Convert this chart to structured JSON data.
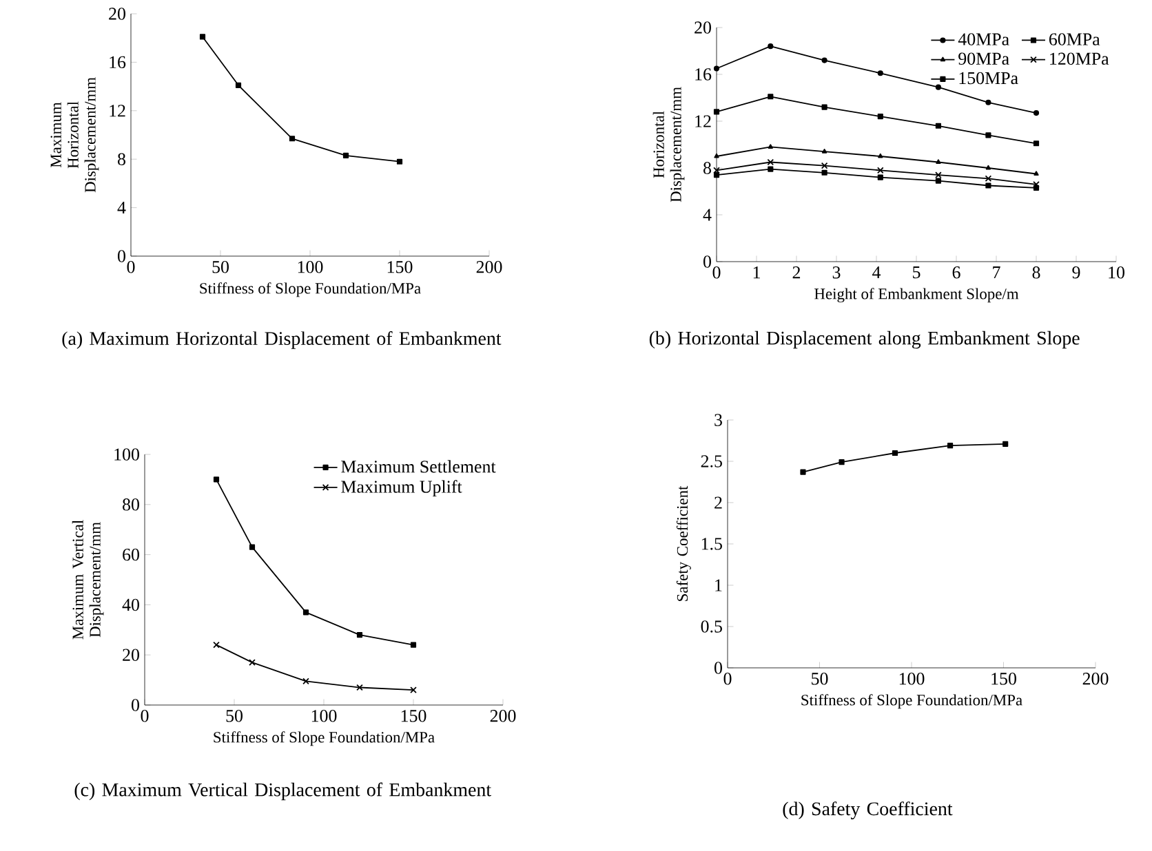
{
  "chart_data": [
    {
      "type": "line",
      "xlabel": "Stiffness of Slope Foundation/MPa",
      "ylabel": "Maximum Horizontal Displacement/mm",
      "annotations": [
        "(a) Maximum Horizontal Displacement of Embankment"
      ],
      "x": [
        40,
        60,
        90,
        120,
        150
      ],
      "marker": "square",
      "xlim": [
        0,
        200
      ],
      "ylim": [
        0,
        20
      ],
      "xticks": [
        0,
        50,
        100,
        150,
        200
      ],
      "yticks": [
        0,
        4,
        8,
        12,
        16,
        20
      ],
      "series": [
        {
          "color": "#000000",
          "values": [
            18.1,
            14.1,
            9.7,
            8.3,
            7.8
          ]
        }
      ]
    },
    {
      "type": "line",
      "xlabel": "Height of Embankment Slope/m",
      "ylabel": "Horizontal Displacement/mm",
      "annotations": [
        "(b) Horizontal Displacement along Embankment Slope"
      ],
      "x": [
        0,
        1.35,
        2.7,
        4.1,
        5.55,
        6.8,
        8
      ],
      "legend": "top right",
      "xlim": [
        0,
        10
      ],
      "ylim": [
        0,
        20
      ],
      "xticks": [
        0,
        1,
        2,
        3,
        4,
        5,
        6,
        7,
        8,
        9,
        10
      ],
      "yticks": [
        0,
        4,
        8,
        12,
        16,
        20
      ],
      "series": [
        {
          "name": "40MPa",
          "color": "#000000",
          "marker": "circle",
          "values": [
            16.5,
            18.4,
            17.2,
            16.1,
            14.9,
            13.6,
            12.7
          ]
        },
        {
          "name": "60MPa",
          "color": "#000000",
          "marker": "square",
          "values": [
            12.8,
            14.1,
            13.2,
            12.4,
            11.6,
            10.8,
            10.1
          ]
        },
        {
          "name": "90MPa",
          "color": "#000000",
          "marker": "triangle",
          "values": [
            9.0,
            9.8,
            9.4,
            9.0,
            8.5,
            8.0,
            7.5
          ]
        },
        {
          "name": "120MPa",
          "color": "#000000",
          "marker": "cross",
          "values": [
            7.8,
            8.5,
            8.2,
            7.8,
            7.4,
            7.1,
            6.6
          ]
        },
        {
          "name": "150MPa",
          "color": "#000000",
          "marker": "square",
          "values": [
            7.4,
            7.9,
            7.6,
            7.2,
            6.9,
            6.5,
            6.3
          ]
        }
      ]
    },
    {
      "type": "line",
      "xlabel": "Stiffness of Slope Foundation/MPa",
      "ylabel": "Maximum Vertical Displacement/mm",
      "annotations": [
        "(c) Maximum Vertical Displacement of Embankment"
      ],
      "x": [
        40,
        60,
        90,
        120,
        150
      ],
      "legend": "top right",
      "xlim": [
        0,
        200
      ],
      "ylim": [
        0,
        100
      ],
      "xticks": [
        0,
        50,
        100,
        150,
        200
      ],
      "yticks": [
        0,
        20,
        40,
        60,
        80,
        100
      ],
      "series": [
        {
          "name": "Maximum Settlement",
          "color": "#000000",
          "marker": "square",
          "values": [
            90,
            63,
            37,
            28,
            24
          ]
        },
        {
          "name": "Maximum Uplift",
          "color": "#000000",
          "marker": "cross",
          "values": [
            24,
            17,
            9.5,
            7,
            6
          ]
        }
      ]
    },
    {
      "type": "line",
      "xlabel": "Stiffness of Slope Foundation/MPa",
      "ylabel": "Safety Coefficient",
      "annotations": [
        "(d) Safety Coefficient"
      ],
      "x": [
        41,
        62,
        91,
        121,
        151
      ],
      "marker": "square",
      "xlim": [
        0,
        200
      ],
      "ylim": [
        0,
        3
      ],
      "xticks": [
        0,
        50,
        100,
        150,
        200
      ],
      "yticks": [
        0,
        0.5,
        1,
        1.5,
        2,
        2.5,
        3
      ],
      "series": [
        {
          "color": "#000000",
          "values": [
            2.37,
            2.49,
            2.6,
            2.69,
            2.71
          ]
        }
      ]
    }
  ]
}
